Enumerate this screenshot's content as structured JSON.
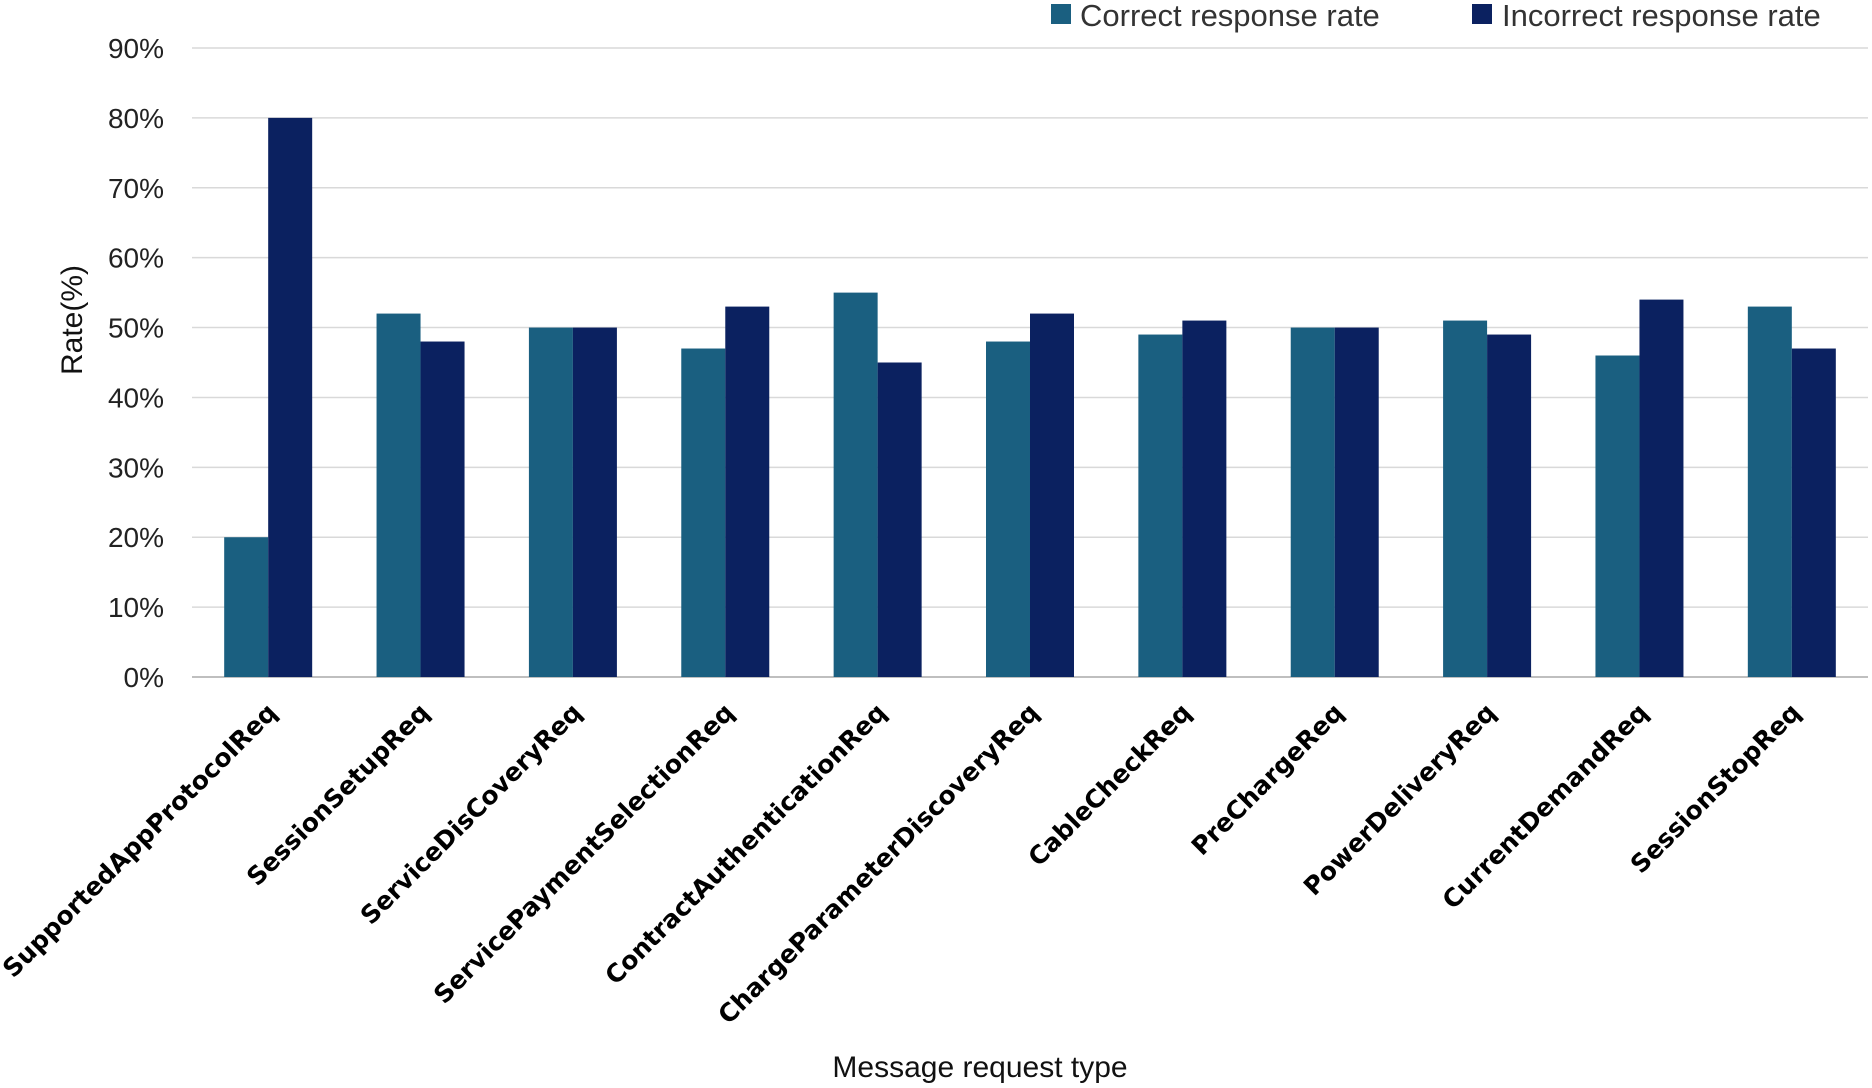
{
  "chart_data": {
    "type": "bar",
    "title": "",
    "xlabel": "Message request type",
    "ylabel": "Rate(%)",
    "ylim": [
      0,
      90
    ],
    "yticks": [
      "0%",
      "10%",
      "20%",
      "30%",
      "40%",
      "50%",
      "60%",
      "70%",
      "80%",
      "90%"
    ],
    "grid": true,
    "legend_position": "top-right",
    "categories": [
      "SupportedAppProtocolReq",
      "SessionSetupReq",
      "ServiceDisCoveryReq",
      "ServicePaymentSelectionReq",
      "ContractAuthenticationReq",
      "ChargeParameterDiscoveryReq",
      "CableCheckReq",
      "PreChargeReq",
      "PowerDeliveryReq",
      "CurrentDemandReq",
      "SessionStopReq"
    ],
    "series": [
      {
        "name": "Correct response rate",
        "color": "#1a5f80",
        "values": [
          20,
          52,
          50,
          47,
          55,
          48,
          49,
          50,
          51,
          46,
          53
        ]
      },
      {
        "name": "Incorrect response rate",
        "color": "#0b2160",
        "values": [
          80,
          48,
          50,
          53,
          45,
          52,
          51,
          50,
          49,
          54,
          47
        ]
      }
    ]
  }
}
